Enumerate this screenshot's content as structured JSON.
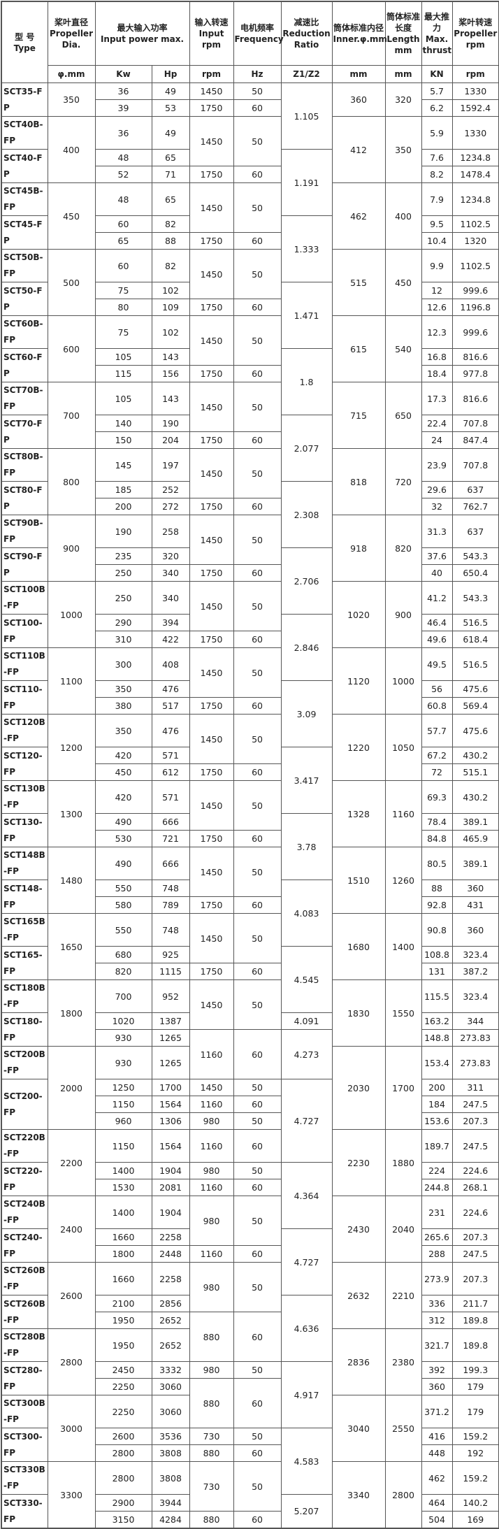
{
  "header": {
    "type": {
      "zh": "型 号",
      "en": "Type"
    },
    "dia": {
      "zh": "桨叶直径",
      "en": "Propeller Dia."
    },
    "power": {
      "zh": "最大输入功率",
      "en": "Input power max."
    },
    "rpm": {
      "zh": "输入转速",
      "en": "Input rpm"
    },
    "hz": {
      "zh": "电机频率",
      "en": "Frequency"
    },
    "ratio": {
      "zh": "减速比",
      "en": "Reduction Ratio"
    },
    "inner": {
      "zh": "筒体标准内径",
      "en": "Inner.φ.mm"
    },
    "len": {
      "zh": "筒体标准长度",
      "en": "Length mm"
    },
    "thr": {
      "zh": "最大推力",
      "en": "Max. thrust"
    },
    "prpm": {
      "zh": "桨叶转速",
      "en": "Propeller rpm"
    }
  },
  "units": {
    "dia": "φ.mm",
    "kw": "Kw",
    "hp": "Hp",
    "rpm": "rpm",
    "hz": "Hz",
    "ratio": "Z1/Z2",
    "inner": "mm",
    "len": "mm",
    "thr": "KN",
    "prpm": "rpm"
  },
  "rows": [
    {
      "type": "SCT35-FP",
      "dia": "350",
      "kw": "36",
      "hp": "49",
      "rpm": "1450",
      "hz": "50",
      "ratio": "1.105",
      "inner": "360",
      "len": "320",
      "thr": "5.7",
      "prpm": "1330",
      "rs": {
        "type": 2,
        "dia": 2,
        "ratio": 3,
        "inner": 2,
        "len": 2
      }
    },
    {
      "kw": "39",
      "hp": "53",
      "rpm": "1750",
      "hz": "60",
      "thr": "6.2",
      "prpm": "1592.4"
    },
    {
      "type": "SCT40B-FP",
      "dia": "400",
      "kw": "36",
      "hp": "49",
      "rpm": "1450",
      "hz": "50",
      "inner": "412",
      "len": "350",
      "thr": "5.9",
      "prpm": "1330",
      "rs": {
        "dia": 3,
        "rpm": 2,
        "hz": 2,
        "inner": 3,
        "len": 3
      }
    },
    {
      "type": "SCT40-FP",
      "kw": "48",
      "hp": "65",
      "ratio": "1.191",
      "thr": "7.6",
      "prpm": "1234.8",
      "rs": {
        "type": 2,
        "ratio": 3
      }
    },
    {
      "kw": "52",
      "hp": "71",
      "rpm": "1750",
      "hz": "60",
      "thr": "8.2",
      "prpm": "1478.4"
    },
    {
      "type": "SCT45B-FP",
      "dia": "450",
      "kw": "48",
      "hp": "65",
      "rpm": "1450",
      "hz": "50",
      "inner": "462",
      "len": "400",
      "thr": "7.9",
      "prpm": "1234.8",
      "rs": {
        "dia": 3,
        "rpm": 2,
        "hz": 2,
        "inner": 3,
        "len": 3
      }
    },
    {
      "type": "SCT45-FP",
      "kw": "60",
      "hp": "82",
      "ratio": "1.333",
      "thr": "9.5",
      "prpm": "1102.5",
      "rs": {
        "type": 2,
        "ratio": 3
      }
    },
    {
      "kw": "65",
      "hp": "88",
      "rpm": "1750",
      "hz": "60",
      "thr": "10.4",
      "prpm": "1320"
    },
    {
      "type": "SCT50B-FP",
      "dia": "500",
      "kw": "60",
      "hp": "82",
      "rpm": "1450",
      "hz": "50",
      "inner": "515",
      "len": "450",
      "thr": "9.9",
      "prpm": "1102.5",
      "rs": {
        "dia": 3,
        "rpm": 2,
        "hz": 2,
        "inner": 3,
        "len": 3
      }
    },
    {
      "type": "SCT50-FP",
      "kw": "75",
      "hp": "102",
      "ratio": "1.471",
      "thr": "12",
      "prpm": "999.6",
      "rs": {
        "type": 2,
        "ratio": 3
      }
    },
    {
      "kw": "80",
      "hp": "109",
      "rpm": "1750",
      "hz": "60",
      "thr": "12.6",
      "prpm": "1196.8"
    },
    {
      "type": "SCT60B-FP",
      "dia": "600",
      "kw": "75",
      "hp": "102",
      "rpm": "1450",
      "hz": "50",
      "inner": "615",
      "len": "540",
      "thr": "12.3",
      "prpm": "999.6",
      "rs": {
        "dia": 3,
        "rpm": 2,
        "hz": 2,
        "inner": 3,
        "len": 3
      }
    },
    {
      "type": "SCT60-FP",
      "kw": "105",
      "hp": "143",
      "ratio": "1.8",
      "thr": "16.8",
      "prpm": "816.6",
      "rs": {
        "type": 2,
        "ratio": 3
      }
    },
    {
      "kw": "115",
      "hp": "156",
      "rpm": "1750",
      "hz": "60",
      "thr": "18.4",
      "prpm": "977.8"
    },
    {
      "type": "SCT70B-FP",
      "dia": "700",
      "kw": "105",
      "hp": "143",
      "rpm": "1450",
      "hz": "50",
      "inner": "715",
      "len": "650",
      "thr": "17.3",
      "prpm": "816.6",
      "rs": {
        "dia": 3,
        "rpm": 2,
        "hz": 2,
        "inner": 3,
        "len": 3
      }
    },
    {
      "type": "SCT70-FP",
      "kw": "140",
      "hp": "190",
      "ratio": "2.077",
      "thr": "22.4",
      "prpm": "707.8",
      "rs": {
        "type": 2,
        "ratio": 3
      }
    },
    {
      "kw": "150",
      "hp": "204",
      "rpm": "1750",
      "hz": "60",
      "thr": "24",
      "prpm": "847.4"
    },
    {
      "type": "SCT80B-FP",
      "dia": "800",
      "kw": "145",
      "hp": "197",
      "rpm": "1450",
      "hz": "50",
      "inner": "818",
      "len": "720",
      "thr": "23.9",
      "prpm": "707.8",
      "rs": {
        "dia": 3,
        "rpm": 2,
        "hz": 2,
        "inner": 3,
        "len": 3
      }
    },
    {
      "type": "SCT80-FP",
      "kw": "185",
      "hp": "252",
      "ratio": "2.308",
      "thr": "29.6",
      "prpm": "637",
      "rs": {
        "type": 2,
        "ratio": 3
      }
    },
    {
      "kw": "200",
      "hp": "272",
      "rpm": "1750",
      "hz": "60",
      "thr": "32",
      "prpm": "762.7"
    },
    {
      "type": "SCT90B-FP",
      "dia": "900",
      "kw": "190",
      "hp": "258",
      "rpm": "1450",
      "hz": "50",
      "inner": "918",
      "len": "820",
      "thr": "31.3",
      "prpm": "637",
      "rs": {
        "dia": 3,
        "rpm": 2,
        "hz": 2,
        "inner": 3,
        "len": 3
      }
    },
    {
      "type": "SCT90-FP",
      "kw": "235",
      "hp": "320",
      "ratio": "2.706",
      "thr": "37.6",
      "prpm": "543.3",
      "rs": {
        "type": 2,
        "ratio": 3
      }
    },
    {
      "kw": "250",
      "hp": "340",
      "rpm": "1750",
      "hz": "60",
      "thr": "40",
      "prpm": "650.4"
    },
    {
      "type": "SCT100B-FP",
      "dia": "1000",
      "kw": "250",
      "hp": "340",
      "rpm": "1450",
      "hz": "50",
      "inner": "1020",
      "len": "900",
      "thr": "41.2",
      "prpm": "543.3",
      "rs": {
        "dia": 3,
        "rpm": 2,
        "hz": 2,
        "inner": 3,
        "len": 3
      }
    },
    {
      "type": "SCT100-FP",
      "kw": "290",
      "hp": "394",
      "ratio": "2.846",
      "thr": "46.4",
      "prpm": "516.5",
      "rs": {
        "type": 2,
        "ratio": 3
      }
    },
    {
      "kw": "310",
      "hp": "422",
      "rpm": "1750",
      "hz": "60",
      "thr": "49.6",
      "prpm": "618.4"
    },
    {
      "type": "SCT110B-FP",
      "dia": "1100",
      "kw": "300",
      "hp": "408",
      "rpm": "1450",
      "hz": "50",
      "inner": "1120",
      "len": "1000",
      "thr": "49.5",
      "prpm": "516.5",
      "rs": {
        "dia": 3,
        "rpm": 2,
        "hz": 2,
        "inner": 3,
        "len": 3
      }
    },
    {
      "type": "SCT110-FP",
      "kw": "350",
      "hp": "476",
      "ratio": "3.09",
      "thr": "56",
      "prpm": "475.6",
      "rs": {
        "type": 2,
        "ratio": 3
      }
    },
    {
      "kw": "380",
      "hp": "517",
      "rpm": "1750",
      "hz": "60",
      "thr": "60.8",
      "prpm": "569.4"
    },
    {
      "type": "SCT120B-FP",
      "dia": "1200",
      "kw": "350",
      "hp": "476",
      "rpm": "1450",
      "hz": "50",
      "inner": "1220",
      "len": "1050",
      "thr": "57.7",
      "prpm": "475.6",
      "rs": {
        "dia": 3,
        "rpm": 2,
        "hz": 2,
        "inner": 3,
        "len": 3
      }
    },
    {
      "type": "SCT120-FP",
      "kw": "420",
      "hp": "571",
      "ratio": "3.417",
      "thr": "67.2",
      "prpm": "430.2",
      "rs": {
        "type": 2,
        "ratio": 3
      }
    },
    {
      "kw": "450",
      "hp": "612",
      "rpm": "1750",
      "hz": "60",
      "thr": "72",
      "prpm": "515.1"
    },
    {
      "type": "SCT130B-FP",
      "dia": "1300",
      "kw": "420",
      "hp": "571",
      "rpm": "1450",
      "hz": "50",
      "inner": "1328",
      "len": "1160",
      "thr": "69.3",
      "prpm": "430.2",
      "rs": {
        "dia": 3,
        "rpm": 2,
        "hz": 2,
        "inner": 3,
        "len": 3
      }
    },
    {
      "type": "SCT130-FP",
      "kw": "490",
      "hp": "666",
      "ratio": "3.78",
      "thr": "78.4",
      "prpm": "389.1",
      "rs": {
        "type": 2,
        "ratio": 3
      }
    },
    {
      "kw": "530",
      "hp": "721",
      "rpm": "1750",
      "hz": "60",
      "thr": "84.8",
      "prpm": "465.9"
    },
    {
      "type": "SCT148B-FP",
      "dia": "1480",
      "kw": "490",
      "hp": "666",
      "rpm": "1450",
      "hz": "50",
      "inner": "1510",
      "len": "1260",
      "thr": "80.5",
      "prpm": "389.1",
      "rs": {
        "dia": 3,
        "rpm": 2,
        "hz": 2,
        "inner": 3,
        "len": 3
      }
    },
    {
      "type": "SCT148-FP",
      "kw": "550",
      "hp": "748",
      "ratio": "4.083",
      "thr": "88",
      "prpm": "360",
      "rs": {
        "type": 2,
        "ratio": 3
      }
    },
    {
      "kw": "580",
      "hp": "789",
      "rpm": "1750",
      "hz": "60",
      "thr": "92.8",
      "prpm": "431"
    },
    {
      "type": "SCT165B-FP",
      "dia": "1650",
      "kw": "550",
      "hp": "748",
      "rpm": "1450",
      "hz": "50",
      "inner": "1680",
      "len": "1400",
      "thr": "90.8",
      "prpm": "360",
      "rs": {
        "dia": 3,
        "rpm": 2,
        "hz": 2,
        "inner": 3,
        "len": 3
      }
    },
    {
      "type": "SCT165-FP",
      "kw": "680",
      "hp": "925",
      "ratio": "4.545",
      "thr": "108.8",
      "prpm": "323.4",
      "rs": {
        "type": 2,
        "ratio": 3
      }
    },
    {
      "kw": "820",
      "hp": "1115",
      "rpm": "1750",
      "hz": "60",
      "thr": "131",
      "prpm": "387.2"
    },
    {
      "type": "SCT180B-FP",
      "dia": "1800",
      "kw": "700",
      "hp": "952",
      "rpm": "1450",
      "hz": "50",
      "inner": "1830",
      "len": "1550",
      "thr": "115.5",
      "prpm": "323.4",
      "rs": {
        "dia": 3,
        "rpm": 2,
        "hz": 2,
        "inner": 3,
        "len": 3
      }
    },
    {
      "type": "SCT180-FP",
      "kw": "1020",
      "hp": "1387",
      "ratio": "4.091",
      "thr": "163.2",
      "prpm": "344",
      "rs": {
        "type": 2
      }
    },
    {
      "kw": "930",
      "hp": "1265",
      "rpm": "1160",
      "hz": "60",
      "ratio": "4.273",
      "thr": "148.8",
      "prpm": "273.83",
      "rs": {
        "rpm": 2,
        "hz": 2,
        "ratio": 2
      }
    },
    {
      "type": "SCT200B-FP",
      "dia": "2000",
      "kw": "930",
      "hp": "1265",
      "inner": "2030",
      "len": "1700",
      "thr": "153.4",
      "prpm": "273.83",
      "rs": {
        "dia": 4,
        "inner": 4,
        "len": 4
      }
    },
    {
      "type": "SCT200-FP",
      "kw": "1250",
      "hp": "1700",
      "rpm": "1450",
      "hz": "50",
      "ratio": "4.727",
      "thr": "200",
      "prpm": "311",
      "rs": {
        "type": 3,
        "ratio": 4
      }
    },
    {
      "kw": "1150",
      "hp": "1564",
      "rpm": "1160",
      "hz": "60",
      "thr": "184",
      "prpm": "247.5"
    },
    {
      "kw": "960",
      "hp": "1306",
      "rpm": "980",
      "hz": "50",
      "thr": "153.6",
      "prpm": "207.3"
    },
    {
      "type": "SCT220B-FP",
      "dia": "2200",
      "kw": "1150",
      "hp": "1564",
      "rpm": "1160",
      "hz": "60",
      "inner": "2230",
      "len": "1880",
      "thr": "189.7",
      "prpm": "247.5",
      "rs": {
        "dia": 3,
        "inner": 3,
        "len": 3
      }
    },
    {
      "type": "SCT220-FP",
      "kw": "1400",
      "hp": "1904",
      "rpm": "980",
      "hz": "50",
      "ratio": "4.364",
      "thr": "224",
      "prpm": "224.6",
      "rs": {
        "type": 2,
        "ratio": 3
      }
    },
    {
      "kw": "1530",
      "hp": "2081",
      "rpm": "1160",
      "hz": "60",
      "thr": "244.8",
      "prpm": "268.1"
    },
    {
      "type": "SCT240B-FP",
      "dia": "2400",
      "kw": "1400",
      "hp": "1904",
      "rpm": "980",
      "hz": "50",
      "inner": "2430",
      "len": "2040",
      "thr": "231",
      "prpm": "224.6",
      "rs": {
        "dia": 3,
        "rpm": 2,
        "hz": 2,
        "inner": 3,
        "len": 3
      }
    },
    {
      "type": "SCT240-FP",
      "kw": "1660",
      "hp": "2258",
      "ratio": "4.727",
      "thr": "265.6",
      "prpm": "207.3",
      "rs": {
        "type": 2,
        "ratio": 3
      }
    },
    {
      "kw": "1800",
      "hp": "2448",
      "rpm": "1160",
      "hz": "60",
      "thr": "288",
      "prpm": "247.5"
    },
    {
      "type": "SCT260B-FP",
      "dia": "2600",
      "kw": "1660",
      "hp": "2258",
      "rpm": "980",
      "hz": "50",
      "inner": "2632",
      "len": "2210",
      "thr": "273.9",
      "prpm": "207.3",
      "rs": {
        "dia": 3,
        "rpm": 2,
        "hz": 2,
        "inner": 3,
        "len": 3
      }
    },
    {
      "type": "SCT260B-FP",
      "kw": "2100",
      "hp": "2856",
      "ratio": "4.636",
      "thr": "336",
      "prpm": "211.7",
      "rs": {
        "type": 2,
        "ratio": 3
      }
    },
    {
      "kw": "1950",
      "hp": "2652",
      "rpm": "880",
      "hz": "60",
      "thr": "312",
      "prpm": "189.8",
      "rs": {
        "rpm": 2,
        "hz": 2
      }
    },
    {
      "type": "SCT280B-FP",
      "dia": "2800",
      "kw": "1950",
      "hp": "2652",
      "inner": "2836",
      "len": "2380",
      "thr": "321.7",
      "prpm": "189.8",
      "rs": {
        "dia": 3,
        "inner": 3,
        "len": 3
      }
    },
    {
      "type": "SCT280-FP",
      "kw": "2450",
      "hp": "3332",
      "rpm": "980",
      "hz": "50",
      "ratio": "4.917",
      "thr": "392",
      "prpm": "199.3",
      "rs": {
        "type": 2,
        "ratio": 3
      }
    },
    {
      "kw": "2250",
      "hp": "3060",
      "rpm": "880",
      "hz": "60",
      "thr": "360",
      "prpm": "179",
      "rs": {
        "rpm": 2,
        "hz": 2
      }
    },
    {
      "type": "SCT300B-FP",
      "dia": "3000",
      "kw": "2250",
      "hp": "3060",
      "inner": "3040",
      "len": "2550",
      "thr": "371.2",
      "prpm": "179",
      "rs": {
        "dia": 3,
        "inner": 3,
        "len": 3
      }
    },
    {
      "type": "SCT300-FP",
      "kw": "2600",
      "hp": "3536",
      "rpm": "730",
      "hz": "50",
      "ratio": "4.583",
      "thr": "416",
      "prpm": "159.2",
      "rs": {
        "type": 2,
        "ratio": 3
      }
    },
    {
      "kw": "2800",
      "hp": "3808",
      "rpm": "880",
      "hz": "60",
      "thr": "448",
      "prpm": "192"
    },
    {
      "type": "SCT330B-FP",
      "dia": "3300",
      "kw": "2800",
      "hp": "3808",
      "rpm": "730",
      "hz": "50",
      "inner": "3340",
      "len": "2800",
      "thr": "462",
      "prpm": "159.2",
      "rs": {
        "dia": 3,
        "rpm": 2,
        "hz": 2,
        "inner": 3,
        "len": 3
      }
    },
    {
      "type": "SCT330-FP",
      "kw": "2900",
      "hp": "3944",
      "ratio": "5.207",
      "thr": "464",
      "prpm": "140.2",
      "rs": {
        "type": 2,
        "ratio": 2
      }
    },
    {
      "kw": "3150",
      "hp": "4284",
      "rpm": "880",
      "hz": "60",
      "thr": "504",
      "prpm": "169"
    }
  ]
}
